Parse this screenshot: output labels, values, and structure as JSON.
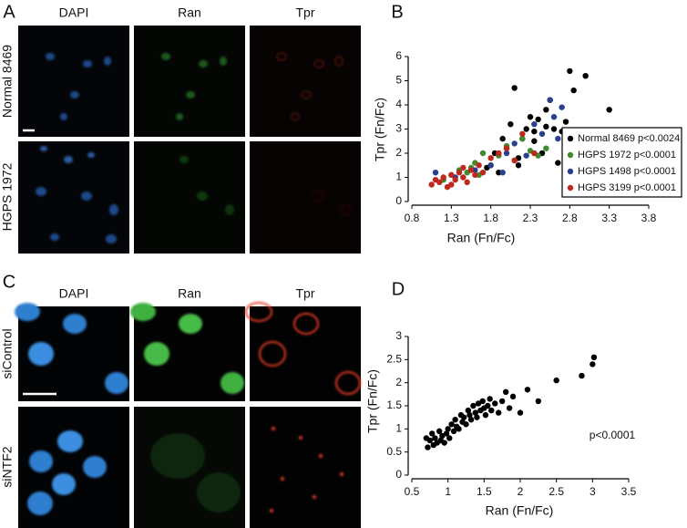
{
  "panels": [
    {
      "letter": "A",
      "columns": [
        "DAPI",
        "Ran",
        "Tpr"
      ],
      "rows": [
        "Normal 8469",
        "HGPS 1972"
      ]
    },
    {
      "letter": "C",
      "columns": [
        "DAPI",
        "Ran",
        "Tpr"
      ],
      "rows": [
        "siControl",
        "siNTF2"
      ]
    }
  ],
  "chart_data": [
    {
      "type": "scatter",
      "panel": "B",
      "x_label": "Ran (Fn/Fc)",
      "y_label": "Tpr (Fn/Fc)",
      "xlim": [
        0.8,
        3.8
      ],
      "xticks": [
        0.8,
        1.3,
        1.8,
        2.3,
        2.8,
        3.3,
        3.8
      ],
      "ylim": [
        0,
        6
      ],
      "yticks": [
        0,
        1,
        2,
        3,
        4,
        5,
        6
      ],
      "legend": "lower right",
      "series": [
        {
          "name": "Normal 8469 p<0.0024",
          "color": "#000000",
          "x": [
            1.75,
            1.85,
            1.95,
            2.0,
            2.05,
            2.1,
            2.15,
            2.2,
            2.25,
            2.3,
            2.35,
            2.4,
            2.45,
            2.5,
            2.55,
            2.6,
            2.65,
            2.7,
            2.75,
            2.8,
            2.85,
            2.9,
            3.0,
            3.3,
            2.15,
            2.35,
            2.5,
            1.9
          ],
          "values": [
            1.4,
            2.0,
            2.6,
            2.2,
            3.2,
            4.7,
            1.8,
            2.6,
            3.0,
            3.5,
            2.5,
            3.4,
            2.0,
            3.8,
            4.2,
            3.0,
            1.6,
            2.9,
            3.3,
            5.4,
            4.6,
            2.2,
            5.2,
            3.8,
            1.5,
            2.9,
            3.1,
            1.2
          ]
        },
        {
          "name": "HGPS 1972 p<0.0001",
          "color": "#3f8a2c",
          "x": [
            1.2,
            1.3,
            1.4,
            1.5,
            1.6,
            1.65,
            1.7,
            1.8,
            1.9,
            2.0,
            2.1,
            2.2,
            2.3,
            2.4,
            2.5,
            1.55
          ],
          "values": [
            0.9,
            1.1,
            1.3,
            1.2,
            1.6,
            1.1,
            2.0,
            1.5,
            1.9,
            2.3,
            1.7,
            2.6,
            2.1,
            1.9,
            2.2,
            1.4
          ]
        },
        {
          "name": "HGPS 1498 p<0.0001",
          "color": "#2b3f8f",
          "x": [
            1.1,
            1.35,
            1.6,
            1.8,
            2.0,
            2.1,
            2.25,
            2.35,
            2.45,
            2.55,
            2.6,
            2.65,
            2.7,
            1.95
          ],
          "values": [
            1.2,
            1.0,
            1.3,
            1.5,
            2.0,
            2.4,
            1.9,
            3.2,
            2.8,
            4.2,
            3.5,
            2.6,
            3.9,
            1.2
          ]
        },
        {
          "name": "HGPS 3199 p<0.0001",
          "color": "#c0281e",
          "x": [
            1.05,
            1.1,
            1.15,
            1.2,
            1.25,
            1.3,
            1.35,
            1.4,
            1.45,
            1.5,
            1.55,
            1.6,
            1.65,
            1.7,
            1.8,
            1.9,
            2.0,
            2.1,
            2.2,
            2.35,
            1.3,
            1.45
          ],
          "values": [
            0.7,
            0.9,
            0.8,
            1.0,
            0.6,
            1.1,
            0.9,
            1.2,
            1.0,
            0.8,
            1.3,
            1.1,
            1.5,
            1.2,
            1.8,
            2.0,
            2.2,
            1.7,
            2.8,
            2.0,
            0.7,
            1.4
          ]
        }
      ]
    },
    {
      "type": "scatter",
      "panel": "D",
      "x_label": "Ran (Fn/Fc)",
      "y_label": "Tpr (Fn/Fc)",
      "annotation": "p<0.0001",
      "xlim": [
        0.5,
        3.5
      ],
      "xticks": [
        0.5,
        1,
        1.5,
        2,
        2.5,
        3,
        3.5
      ],
      "ylim": [
        0,
        3
      ],
      "yticks": [
        0,
        0.5,
        1,
        1.5,
        2,
        2.5,
        3
      ],
      "color": "#000000",
      "x": [
        0.7,
        0.72,
        0.75,
        0.78,
        0.8,
        0.82,
        0.85,
        0.88,
        0.9,
        0.92,
        0.95,
        0.98,
        1.0,
        1.02,
        1.05,
        1.08,
        1.1,
        1.12,
        1.15,
        1.18,
        1.2,
        1.22,
        1.25,
        1.28,
        1.3,
        1.32,
        1.35,
        1.38,
        1.4,
        1.42,
        1.45,
        1.48,
        1.5,
        1.52,
        1.55,
        1.58,
        1.6,
        1.65,
        1.7,
        1.75,
        1.8,
        1.85,
        1.9,
        2.0,
        2.1,
        2.25,
        2.5,
        2.85,
        3.0,
        3.02
      ],
      "values": [
        0.8,
        0.6,
        0.75,
        0.9,
        0.65,
        0.8,
        0.7,
        0.95,
        0.75,
        0.85,
        0.7,
        0.9,
        1.0,
        0.8,
        1.1,
        0.95,
        1.2,
        1.05,
        1.0,
        1.3,
        1.15,
        1.25,
        1.1,
        1.4,
        1.3,
        1.2,
        1.5,
        1.35,
        1.25,
        1.55,
        1.4,
        1.6,
        1.45,
        1.3,
        1.5,
        1.65,
        1.4,
        1.55,
        1.35,
        1.6,
        1.8,
        1.45,
        1.7,
        1.35,
        1.85,
        1.6,
        2.05,
        2.15,
        2.4,
        2.55
      ]
    }
  ]
}
